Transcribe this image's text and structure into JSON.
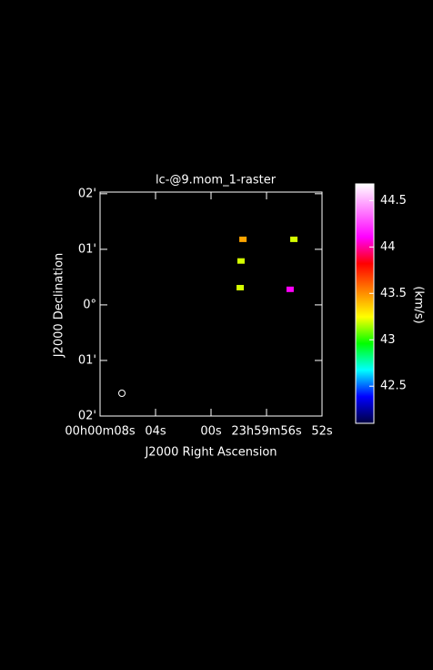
{
  "chart_data": {
    "type": "raster",
    "title": "lc-@9.mom_1-raster",
    "x_label": "J2000 Right Ascension",
    "y_label": "J2000 Declination",
    "colorbar_label": "(km/s)",
    "xlim": [
      8,
      -8
    ],
    "xticks": [
      {
        "value": 8,
        "label": "00h00m08s"
      },
      {
        "value": 4,
        "label": "04s"
      },
      {
        "value": 0,
        "label": "00s"
      },
      {
        "value": -4,
        "label": "23h59m56s"
      },
      {
        "value": -8,
        "label": "52s"
      }
    ],
    "ylim": [
      -2.0,
      2.03
    ],
    "yticks": [
      {
        "value": 2,
        "label": "02'"
      },
      {
        "value": 1,
        "label": "01'"
      },
      {
        "value": 0,
        "label": "0°"
      },
      {
        "value": -1,
        "label": "01'"
      },
      {
        "value": -2,
        "label": "02'"
      }
    ],
    "clim": [
      42.1,
      44.68
    ],
    "cticks": [
      42.5,
      43,
      43.5,
      44,
      44.5
    ],
    "colormap": [
      "#000040",
      "#0000ff",
      "#00ffff",
      "#00ff00",
      "#ffff00",
      "#ff8000",
      "#ff0000",
      "#ff00ff",
      "#ff80ff",
      "#ffffff"
    ],
    "x": [
      -2.3,
      -5.97,
      -2.16,
      -2.1,
      -5.7
    ],
    "y": [
      1.18,
      1.18,
      0.79,
      0.31,
      0.28
    ],
    "values": [
      43.45,
      43.2,
      43.2,
      43.2,
      44.1
    ]
  }
}
